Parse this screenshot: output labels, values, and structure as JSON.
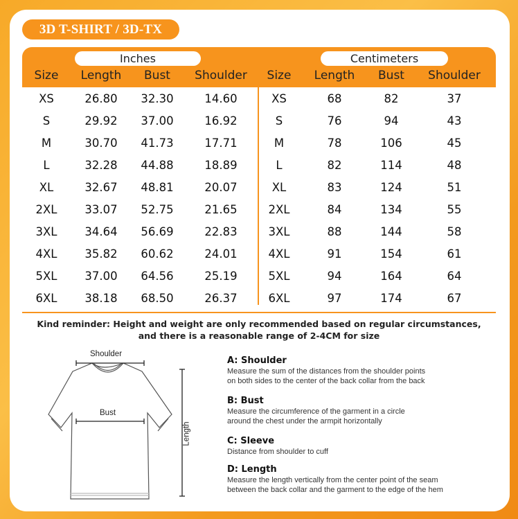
{
  "badge": "3D T-SHIRT / 3D-TX",
  "units": {
    "inches": "Inches",
    "centimeters": "Centimeters"
  },
  "columns": [
    "Size",
    "Length",
    "Bust",
    "Shoulder"
  ],
  "inches_rows": [
    [
      "XS",
      "26.80",
      "32.30",
      "14.60"
    ],
    [
      "S",
      "29.92",
      "37.00",
      "16.92"
    ],
    [
      "M",
      "30.70",
      "41.73",
      "17.71"
    ],
    [
      "L",
      "32.28",
      "44.88",
      "18.89"
    ],
    [
      "XL",
      "32.67",
      "48.81",
      "20.07"
    ],
    [
      "2XL",
      "33.07",
      "52.75",
      "21.65"
    ],
    [
      "3XL",
      "34.64",
      "56.69",
      "22.83"
    ],
    [
      "4XL",
      "35.82",
      "60.62",
      "24.01"
    ],
    [
      "5XL",
      "37.00",
      "64.56",
      "25.19"
    ],
    [
      "6XL",
      "38.18",
      "68.50",
      "26.37"
    ]
  ],
  "cm_rows": [
    [
      "XS",
      "68",
      "82",
      "37"
    ],
    [
      "S",
      "76",
      "94",
      "43"
    ],
    [
      "M",
      "78",
      "106",
      "45"
    ],
    [
      "L",
      "82",
      "114",
      "48"
    ],
    [
      "XL",
      "83",
      "124",
      "51"
    ],
    [
      "2XL",
      "84",
      "134",
      "55"
    ],
    [
      "3XL",
      "88",
      "144",
      "58"
    ],
    [
      "4XL",
      "91",
      "154",
      "61"
    ],
    [
      "5XL",
      "94",
      "164",
      "64"
    ],
    [
      "6XL",
      "97",
      "174",
      "67"
    ]
  ],
  "reminder": [
    "Kind reminder: Height and weight are only recommended based on regular circumstances,",
    "and there is a reasonable range of 2-4CM for size"
  ],
  "diagram": {
    "shoulder": "Shoulder",
    "bust": "Bust",
    "length": "Length"
  },
  "descriptions": [
    {
      "title": "A: Shoulder",
      "lines": [
        "Measure the sum of the distances from the shoulder points",
        "on both sides to the center of the back collar from the back"
      ]
    },
    {
      "title": "B: Bust",
      "lines": [
        "Measure the circumference of the garment in a circle",
        "around the chest under the armpit horizontally"
      ]
    },
    {
      "title": "C: Sleeve",
      "lines": [
        "Distance from shoulder to cuff"
      ]
    },
    {
      "title": "D: Length",
      "lines": [
        "Measure the length vertically from the center point of the seam",
        "between the back collar and the garment to the edge of the hem"
      ]
    }
  ],
  "colors": {
    "accent": "#f7941d"
  }
}
